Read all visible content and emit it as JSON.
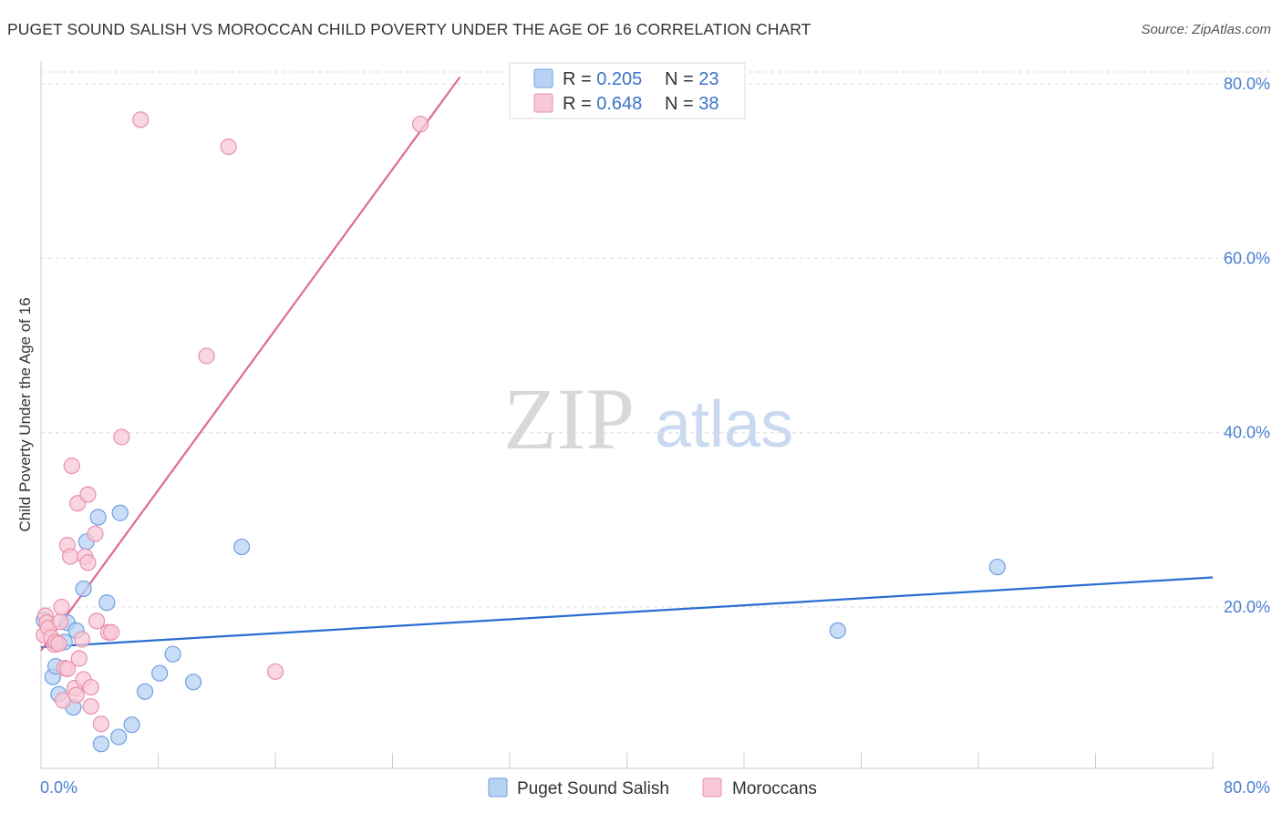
{
  "title": "PUGET SOUND SALISH VS MOROCCAN CHILD POVERTY UNDER THE AGE OF 16 CORRELATION CHART",
  "source": "Source: ZipAtlas.com",
  "watermark": {
    "zip": "ZIP",
    "atlas": "atlas"
  },
  "chart_data": {
    "type": "scatter",
    "title": "PUGET SOUND SALISH VS MOROCCAN CHILD POVERTY UNDER THE AGE OF 16 CORRELATION CHART",
    "xlabel": "",
    "ylabel": "Child Poverty Under the Age of 16",
    "xlim": [
      0,
      80
    ],
    "ylim": [
      1.5,
      82
    ],
    "x_tick_labels": [
      "0.0%",
      "80.0%"
    ],
    "y_ticks": [
      20,
      40,
      60,
      80
    ],
    "y_tick_labels": [
      "20.0%",
      "40.0%",
      "60.0%",
      "80.0%"
    ],
    "colors": {
      "salish_fill": "#b8d2f4",
      "salish_stroke": "#6f9fe0",
      "salish_line": "#2a6fd0",
      "moroccan_fill": "#f8c8d6",
      "moroccan_stroke": "#e890ad",
      "moroccan_line": "#e06a92",
      "tick_text": "#4a7fd0"
    },
    "legend": {
      "rows": [
        {
          "r_label": "R = ",
          "r_value": "0.205",
          "n_label": "N = ",
          "n_value": "23"
        },
        {
          "r_label": "R = ",
          "r_value": "0.648",
          "n_label": "N = ",
          "n_value": "38"
        }
      ]
    },
    "series": [
      {
        "name": "Puget Sound Salish",
        "trend": {
          "x0": 0,
          "y0": 15.4,
          "x1": 80,
          "y1": 23.4
        },
        "points": [
          [
            0.2,
            18.5
          ],
          [
            0.8,
            12.0
          ],
          [
            1.0,
            13.2
          ],
          [
            1.2,
            10.0
          ],
          [
            1.6,
            16.0
          ],
          [
            1.8,
            18.2
          ],
          [
            2.2,
            8.5
          ],
          [
            2.4,
            17.3
          ],
          [
            2.9,
            22.1
          ],
          [
            3.1,
            27.5
          ],
          [
            3.9,
            30.3
          ],
          [
            4.1,
            4.3
          ],
          [
            4.5,
            20.5
          ],
          [
            5.3,
            5.1
          ],
          [
            5.4,
            30.8
          ],
          [
            6.2,
            6.5
          ],
          [
            7.1,
            10.3
          ],
          [
            8.1,
            12.4
          ],
          [
            9.0,
            14.6
          ],
          [
            10.4,
            11.4
          ],
          [
            13.7,
            26.9
          ],
          [
            54.4,
            17.3
          ],
          [
            65.3,
            24.6
          ]
        ]
      },
      {
        "name": "Moroccans",
        "trend": {
          "x0": 0,
          "y0": 15.0,
          "x1": 28.6,
          "y1": 80.8
        },
        "points": [
          [
            0.2,
            16.8
          ],
          [
            0.3,
            19.0
          ],
          [
            0.4,
            18.2
          ],
          [
            0.5,
            17.6
          ],
          [
            0.7,
            16.5
          ],
          [
            0.9,
            15.7
          ],
          [
            1.0,
            16.0
          ],
          [
            1.2,
            15.8
          ],
          [
            1.3,
            18.3
          ],
          [
            1.4,
            20.0
          ],
          [
            1.5,
            9.3
          ],
          [
            1.6,
            13.0
          ],
          [
            1.8,
            12.9
          ],
          [
            1.8,
            27.1
          ],
          [
            2.0,
            25.8
          ],
          [
            2.1,
            36.2
          ],
          [
            2.3,
            10.7
          ],
          [
            2.4,
            9.9
          ],
          [
            2.5,
            31.9
          ],
          [
            2.6,
            14.1
          ],
          [
            2.8,
            16.3
          ],
          [
            2.9,
            11.7
          ],
          [
            3.0,
            25.8
          ],
          [
            3.2,
            25.1
          ],
          [
            3.2,
            32.9
          ],
          [
            3.4,
            10.8
          ],
          [
            3.4,
            8.6
          ],
          [
            3.7,
            28.4
          ],
          [
            3.8,
            18.4
          ],
          [
            4.1,
            6.6
          ],
          [
            4.6,
            17.1
          ],
          [
            4.8,
            17.1
          ],
          [
            5.5,
            39.5
          ],
          [
            6.8,
            75.9
          ],
          [
            11.3,
            48.8
          ],
          [
            12.8,
            72.8
          ],
          [
            16.0,
            12.6
          ],
          [
            25.9,
            75.4
          ]
        ]
      }
    ]
  }
}
